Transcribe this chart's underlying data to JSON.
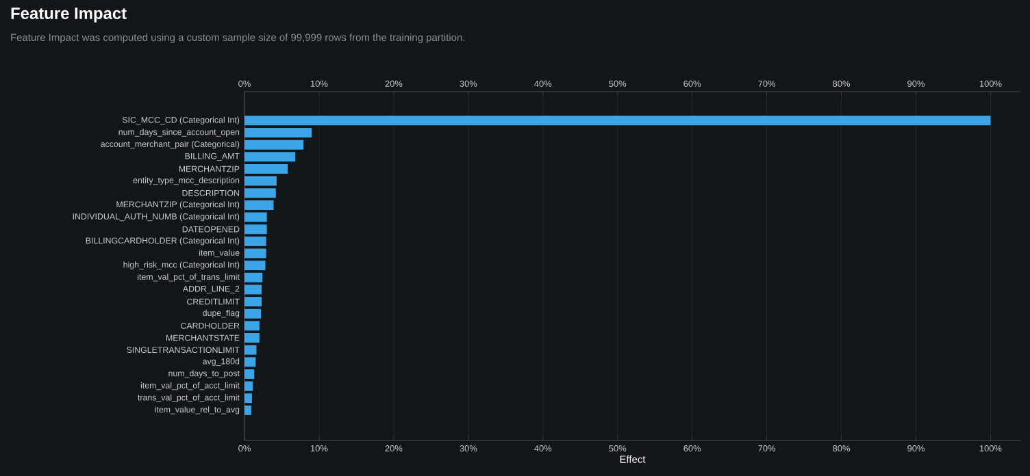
{
  "chart_data": {
    "type": "bar",
    "orientation": "horizontal",
    "title": "Feature Impact",
    "subtitle": "Feature Impact was computed using a custom sample size of 99,999 rows from the training partition.",
    "xlabel": "Effect",
    "categories": [
      "SIC_MCC_CD (Categorical Int)",
      "num_days_since_account_open",
      "account_merchant_pair (Categorical)",
      "BILLING_AMT",
      "MERCHANTZIP",
      "entity_type_mcc_description",
      "DESCRIPTION",
      "MERCHANTZIP (Categorical Int)",
      "INDIVIDUAL_AUTH_NUMB (Categorical Int)",
      "DATEOPENED",
      "BILLINGCARDHOLDER (Categorical Int)",
      "item_value",
      "high_risk_mcc (Categorical Int)",
      "item_val_pct_of_trans_limit",
      "ADDR_LINE_2",
      "CREDITLIMIT",
      "dupe_flag",
      "CARDHOLDER",
      "MERCHANTSTATE",
      "SINGLETRANSACTIONLIMIT",
      "avg_180d",
      "num_days_to_post",
      "item_val_pct_of_acct_limit",
      "trans_val_pct_of_acct_limit",
      "item_value_rel_to_avg"
    ],
    "values": [
      100,
      9.0,
      7.9,
      6.8,
      5.8,
      4.3,
      4.2,
      3.9,
      3.0,
      3.0,
      2.9,
      2.9,
      2.8,
      2.4,
      2.3,
      2.3,
      2.2,
      2.0,
      2.0,
      1.6,
      1.5,
      1.3,
      1.1,
      1.0,
      0.9
    ],
    "color": "#3ca5e8",
    "xlim": [
      0,
      104
    ],
    "xticks": [
      {
        "value": 0,
        "label": "0%"
      },
      {
        "value": 10,
        "label": "10%"
      },
      {
        "value": 20,
        "label": "20%"
      },
      {
        "value": 30,
        "label": "30%"
      },
      {
        "value": 40,
        "label": "40%"
      },
      {
        "value": 50,
        "label": "50%"
      },
      {
        "value": 60,
        "label": "60%"
      },
      {
        "value": 70,
        "label": "70%"
      },
      {
        "value": 80,
        "label": "80%"
      },
      {
        "value": 90,
        "label": "90%"
      },
      {
        "value": 100,
        "label": "100%"
      }
    ],
    "x2lim": [
      0,
      104
    ],
    "x2ticks": [
      {
        "value": 0,
        "label": "0%"
      },
      {
        "value": 10,
        "label": "10%"
      },
      {
        "value": 20,
        "label": "20%"
      },
      {
        "value": 30,
        "label": "30%"
      },
      {
        "value": 40,
        "label": "40%"
      },
      {
        "value": 50,
        "label": "50%"
      },
      {
        "value": 60,
        "label": "60%"
      },
      {
        "value": 70,
        "label": "70%"
      },
      {
        "value": 80,
        "label": "80%"
      },
      {
        "value": 90,
        "label": "90%"
      },
      {
        "value": 100,
        "label": "100%"
      }
    ],
    "grid": "x"
  }
}
